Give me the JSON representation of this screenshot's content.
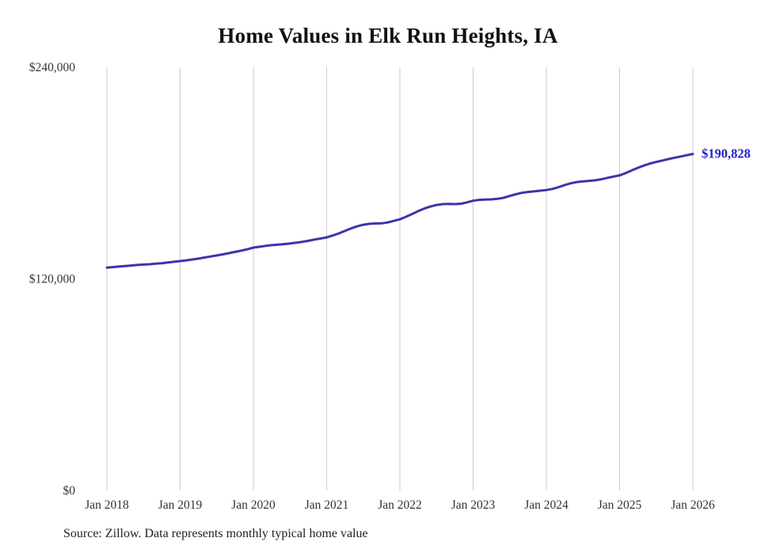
{
  "title": "Home Values in Elk Run Heights, IA",
  "source_note": "Source: Zillow. Data represents monthly typical home value",
  "chart_data": {
    "type": "line",
    "title": "Home Values in Elk Run Heights, IA",
    "series_name": "Monthly typical home value",
    "x_tick_labels": [
      "Jan 2018",
      "Jan 2019",
      "Jan 2020",
      "Jan 2021",
      "Jan 2022",
      "Jan 2023",
      "Jan 2024",
      "Jan 2025",
      "Jan 2026"
    ],
    "y_tick_labels": [
      "$0",
      "$120,000",
      "$240,000"
    ],
    "y_ticks": [
      0,
      120000,
      240000
    ],
    "ylim": [
      0,
      240000
    ],
    "end_label": "$190,828",
    "end_value": 190828,
    "line_color": "#3a35aa",
    "label_color": "#2222cc",
    "grid_color": "#cccccc",
    "grid": "vertical-only",
    "legend": "none",
    "x": [
      "2018-01",
      "2018-02",
      "2018-03",
      "2018-04",
      "2018-05",
      "2018-06",
      "2018-07",
      "2018-08",
      "2018-09",
      "2018-10",
      "2018-11",
      "2018-12",
      "2019-01",
      "2019-02",
      "2019-03",
      "2019-04",
      "2019-05",
      "2019-06",
      "2019-07",
      "2019-08",
      "2019-09",
      "2019-10",
      "2019-11",
      "2019-12",
      "2020-01",
      "2020-02",
      "2020-03",
      "2020-04",
      "2020-05",
      "2020-06",
      "2020-07",
      "2020-08",
      "2020-09",
      "2020-10",
      "2020-11",
      "2020-12",
      "2021-01",
      "2021-02",
      "2021-03",
      "2021-04",
      "2021-05",
      "2021-06",
      "2021-07",
      "2021-08",
      "2021-09",
      "2021-10",
      "2021-11",
      "2021-12",
      "2022-01",
      "2022-02",
      "2022-03",
      "2022-04",
      "2022-05",
      "2022-06",
      "2022-07",
      "2022-08",
      "2022-09",
      "2022-10",
      "2022-11",
      "2022-12",
      "2023-01",
      "2023-02",
      "2023-03",
      "2023-04",
      "2023-05",
      "2023-06",
      "2023-07",
      "2023-08",
      "2023-09",
      "2023-10",
      "2023-11",
      "2023-12",
      "2024-01",
      "2024-02",
      "2024-03",
      "2024-04",
      "2024-05",
      "2024-06",
      "2024-07",
      "2024-08",
      "2024-09",
      "2024-10",
      "2024-11",
      "2024-12",
      "2025-01",
      "2025-02",
      "2025-03",
      "2025-04",
      "2025-05",
      "2025-06",
      "2025-07",
      "2025-08",
      "2025-09",
      "2025-10",
      "2025-11",
      "2025-12",
      "2026-01"
    ],
    "values": [
      126400,
      126700,
      127000,
      127300,
      127600,
      127900,
      128100,
      128300,
      128600,
      128900,
      129300,
      129700,
      130100,
      130500,
      131000,
      131500,
      132100,
      132700,
      133300,
      133900,
      134600,
      135300,
      136000,
      136800,
      137700,
      138200,
      138700,
      139100,
      139400,
      139700,
      140100,
      140500,
      141000,
      141600,
      142300,
      142900,
      143500,
      144600,
      145800,
      147200,
      148600,
      149800,
      150700,
      151200,
      151400,
      151500,
      152000,
      152900,
      153800,
      155200,
      156800,
      158400,
      159900,
      161000,
      161900,
      162400,
      162500,
      162400,
      162600,
      163400,
      164300,
      164800,
      165000,
      165100,
      165400,
      166000,
      167000,
      168000,
      168800,
      169300,
      169600,
      170000,
      170400,
      171000,
      172000,
      173200,
      174200,
      174900,
      175300,
      175600,
      175900,
      176500,
      177300,
      178000,
      178700,
      180000,
      181500,
      183000,
      184300,
      185400,
      186300,
      187100,
      187900,
      188700,
      189400,
      190100,
      190828
    ]
  }
}
